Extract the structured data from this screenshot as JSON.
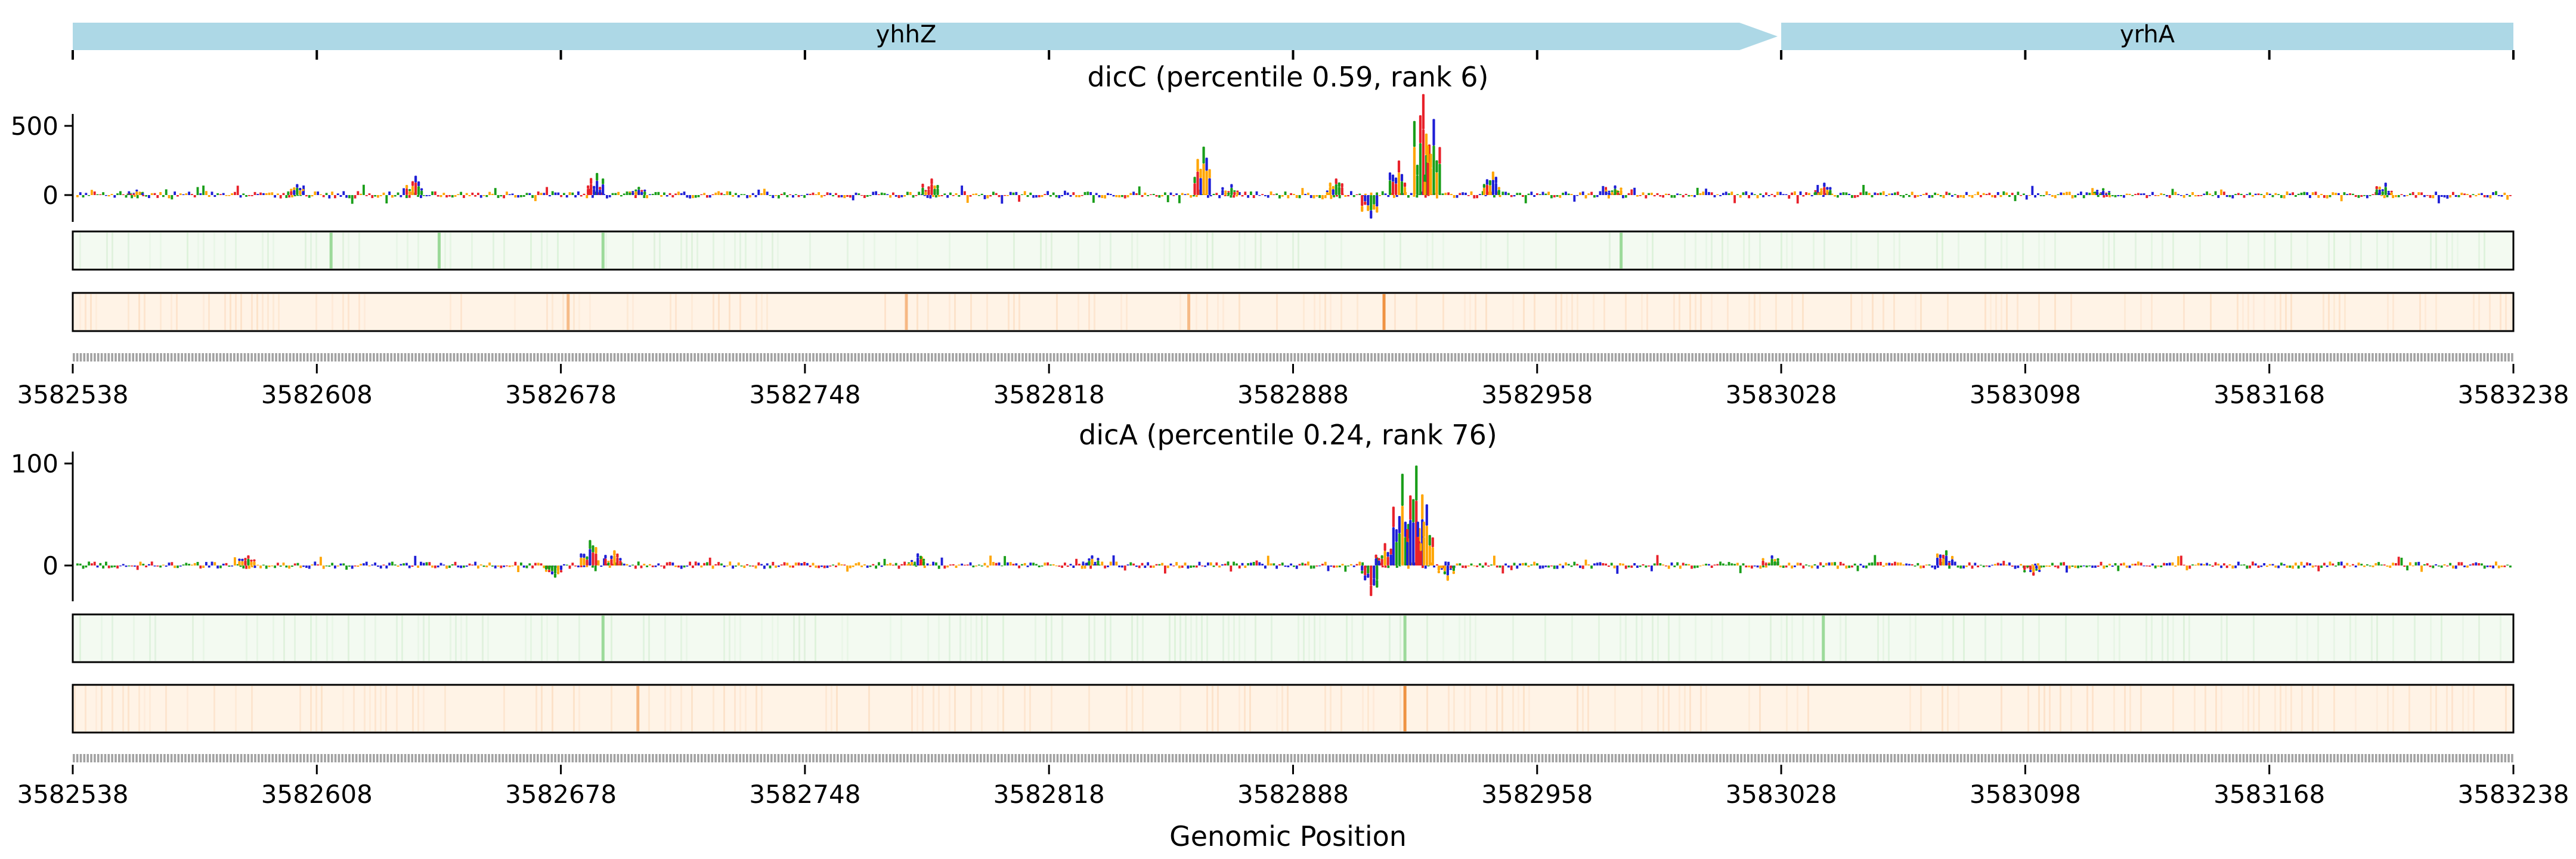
{
  "figure": {
    "xlabel": "Genomic Position"
  },
  "genes": [
    {
      "name": "yhhZ",
      "start": 3582538,
      "end": 3583028,
      "strand": "+"
    },
    {
      "name": "yrhA",
      "start": 3583028,
      "end": 3583238,
      "strand": "+"
    }
  ],
  "colors": {
    "gene_fill": "#add8e6",
    "base_A": "#1a9e1a",
    "base_C": "#1f1fd6",
    "base_G": "#ffa500",
    "base_T": "#e8212a",
    "track1_base": "#f3faf1",
    "track1_peak": "#7fcf7c",
    "track2_base": "#fff3e6",
    "track2_peak": "#ee8d3a"
  },
  "chart_data": [
    {
      "type": "sequence-logo",
      "title": "dicC (percentile 0.59, rank 6)",
      "x_ticks": [
        "3582538",
        "3582608",
        "3582678",
        "3582748",
        "3582818",
        "3582888",
        "3582958",
        "3583028",
        "3583098",
        "3583168",
        "3583238"
      ],
      "xlim": [
        3582538,
        3583238
      ],
      "y_ticks": [
        "0",
        "500"
      ],
      "ylim": [
        -200,
        750
      ],
      "peaks": [
        {
          "pos": 3582556,
          "value": 40
        },
        {
          "pos": 3582602,
          "value": 80
        },
        {
          "pos": 3582636,
          "value": 140
        },
        {
          "pos": 3582688,
          "value": 160
        },
        {
          "pos": 3582700,
          "value": 60
        },
        {
          "pos": 3582784,
          "value": 120
        },
        {
          "pos": 3582862,
          "value": 350
        },
        {
          "pos": 3582870,
          "value": 80
        },
        {
          "pos": 3582900,
          "value": 120
        },
        {
          "pos": 3582910,
          "value": -170
        },
        {
          "pos": 3582918,
          "value": 250
        },
        {
          "pos": 3582925,
          "value": 730
        },
        {
          "pos": 3582928,
          "value": 550
        },
        {
          "pos": 3582945,
          "value": 170
        },
        {
          "pos": 3582980,
          "value": 70
        },
        {
          "pos": 3583040,
          "value": 90
        },
        {
          "pos": 3583120,
          "value": 50
        },
        {
          "pos": 3583201,
          "value": 90
        }
      ],
      "track1_peaks": [
        3582612,
        3582643,
        3582690,
        3582982
      ],
      "track2_peaks": [
        3582680,
        3582777,
        3582858,
        3582914
      ]
    },
    {
      "type": "sequence-logo",
      "title": "dicA (percentile 0.24, rank 76)",
      "x_ticks": [
        "3582538",
        "3582608",
        "3582678",
        "3582748",
        "3582818",
        "3582888",
        "3582958",
        "3583028",
        "3583098",
        "3583168",
        "3583238"
      ],
      "xlim": [
        3582538,
        3583238
      ],
      "y_ticks": [
        "0",
        "100"
      ],
      "ylim": [
        -40,
        110
      ],
      "peaks": [
        {
          "pos": 3582588,
          "value": 10
        },
        {
          "pos": 3582676,
          "value": -12
        },
        {
          "pos": 3582686,
          "value": 25
        },
        {
          "pos": 3582693,
          "value": 15
        },
        {
          "pos": 3582780,
          "value": 12
        },
        {
          "pos": 3582830,
          "value": 10
        },
        {
          "pos": 3582910,
          "value": -30
        },
        {
          "pos": 3582914,
          "value": 22
        },
        {
          "pos": 3582919,
          "value": 90
        },
        {
          "pos": 3582923,
          "value": 98
        },
        {
          "pos": 3582926,
          "value": 60
        },
        {
          "pos": 3582932,
          "value": -15
        },
        {
          "pos": 3583025,
          "value": 10
        },
        {
          "pos": 3583075,
          "value": 15
        },
        {
          "pos": 3583100,
          "value": -10
        }
      ],
      "track1_peaks": [
        3582690,
        3582920,
        3583040
      ],
      "track2_peaks": [
        3582700,
        3582920
      ]
    }
  ]
}
